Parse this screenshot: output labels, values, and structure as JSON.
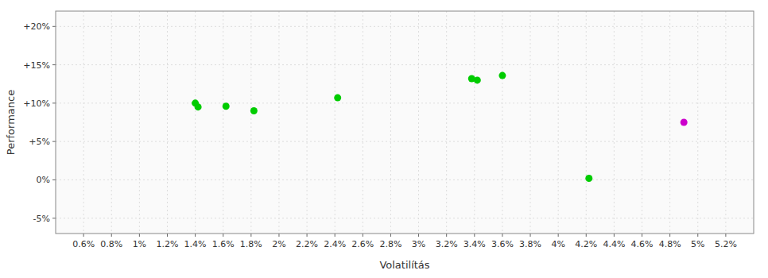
{
  "chart_data": {
    "type": "scatter",
    "xlabel": "Volatilítás",
    "ylabel": "Performance",
    "x": [
      1.4,
      1.42,
      1.62,
      1.82,
      2.42,
      3.38,
      3.42,
      3.6,
      4.22,
      4.9
    ],
    "values": [
      10.0,
      9.5,
      9.6,
      9.0,
      10.7,
      13.2,
      13.0,
      13.6,
      0.2,
      7.5
    ],
    "colors": [
      "#00cc00",
      "#00cc00",
      "#00cc00",
      "#00cc00",
      "#00cc00",
      "#00cc00",
      "#00cc00",
      "#00cc00",
      "#00cc00",
      "#cc00cc"
    ],
    "xlim": [
      0.4,
      5.4
    ],
    "ylim": [
      -7,
      22
    ],
    "xticks": [
      {
        "value": 0.6,
        "label": "0.6%"
      },
      {
        "value": 0.8,
        "label": "0.8%"
      },
      {
        "value": 1.0,
        "label": "1%"
      },
      {
        "value": 1.2,
        "label": "1.2%"
      },
      {
        "value": 1.4,
        "label": "1.4%"
      },
      {
        "value": 1.6,
        "label": "1.6%"
      },
      {
        "value": 1.8,
        "label": "1.8%"
      },
      {
        "value": 2.0,
        "label": "2%"
      },
      {
        "value": 2.2,
        "label": "2.2%"
      },
      {
        "value": 2.4,
        "label": "2.4%"
      },
      {
        "value": 2.6,
        "label": "2.6%"
      },
      {
        "value": 2.8,
        "label": "2.8%"
      },
      {
        "value": 3.0,
        "label": "3%"
      },
      {
        "value": 3.2,
        "label": "3.2%"
      },
      {
        "value": 3.4,
        "label": "3.4%"
      },
      {
        "value": 3.6,
        "label": "3.6%"
      },
      {
        "value": 3.8,
        "label": "3.8%"
      },
      {
        "value": 4.0,
        "label": "4%"
      },
      {
        "value": 4.2,
        "label": "4.2%"
      },
      {
        "value": 4.4,
        "label": "4.4%"
      },
      {
        "value": 4.6,
        "label": "4.6%"
      },
      {
        "value": 4.8,
        "label": "4.8%"
      },
      {
        "value": 5.0,
        "label": "5%"
      },
      {
        "value": 5.2,
        "label": "5.2%"
      }
    ],
    "yticks": [
      {
        "value": -5,
        "label": "-5%"
      },
      {
        "value": 0,
        "label": "0%"
      },
      {
        "value": 5,
        "label": "+5%"
      },
      {
        "value": 10,
        "label": "+10%"
      },
      {
        "value": 15,
        "label": "+15%"
      },
      {
        "value": 20,
        "label": "+20%"
      }
    ],
    "grid": true
  }
}
